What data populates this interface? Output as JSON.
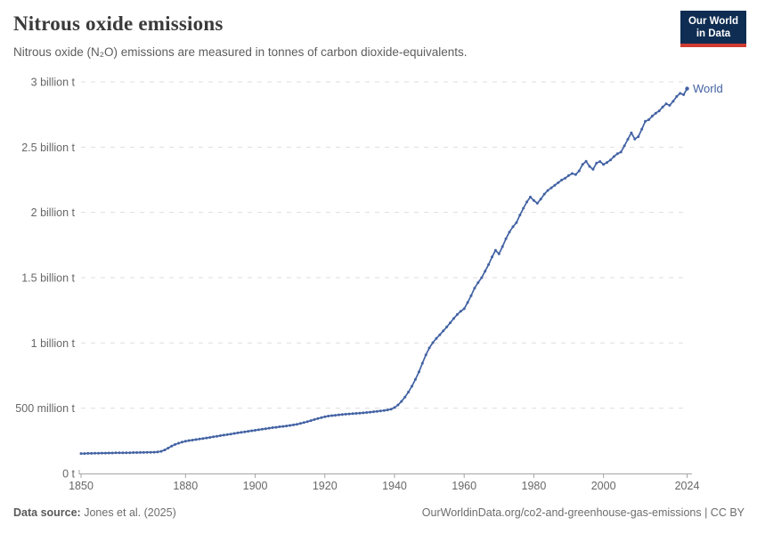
{
  "header": {
    "title": "Nitrous oxide emissions",
    "subtitle": "Nitrous oxide (N₂O) emissions are measured in tonnes of carbon dioxide-equivalents.",
    "logo": {
      "line1": "Our World",
      "line2": "in Data",
      "bg_color": "#0f2d52",
      "accent_color": "#cf3a31"
    }
  },
  "footer": {
    "source_label": "Data source:",
    "source_value": "Jones et al. (2025)",
    "right_text": "OurWorldinData.org/co2-and-greenhouse-gas-emissions | CC BY"
  },
  "chart_data": {
    "type": "line",
    "title": "Nitrous oxide emissions",
    "series_label": "World",
    "line_color": "#4262a3",
    "grid": "dashed-horizontal",
    "grid_color": "#dedede",
    "axis_color": "#a5a5a5",
    "unit": "tonnes of CO2-equivalents",
    "xlim": [
      1850,
      2024
    ],
    "ylim": [
      0,
      3
    ],
    "y_ticks": [
      {
        "value": 0,
        "label": "0 t"
      },
      {
        "value": 0.5,
        "label": "500 million t"
      },
      {
        "value": 1,
        "label": "1 billion t"
      },
      {
        "value": 1.5,
        "label": "1.5 billion t"
      },
      {
        "value": 2,
        "label": "2 billion t"
      },
      {
        "value": 2.5,
        "label": "2.5 billion t"
      },
      {
        "value": 3,
        "label": "3 billion t"
      }
    ],
    "x_ticks": [
      1850,
      1880,
      1900,
      1920,
      1940,
      1960,
      1980,
      2000,
      2024
    ],
    "x_start": 1850,
    "x_step": 1,
    "values_unit": "billion t",
    "values": [
      0.153,
      0.153,
      0.154,
      0.154,
      0.155,
      0.155,
      0.156,
      0.156,
      0.157,
      0.157,
      0.158,
      0.158,
      0.158,
      0.159,
      0.159,
      0.16,
      0.16,
      0.161,
      0.161,
      0.162,
      0.162,
      0.163,
      0.165,
      0.17,
      0.18,
      0.194,
      0.209,
      0.222,
      0.232,
      0.24,
      0.247,
      0.252,
      0.256,
      0.26,
      0.264,
      0.268,
      0.272,
      0.276,
      0.281,
      0.285,
      0.29,
      0.294,
      0.298,
      0.302,
      0.307,
      0.311,
      0.315,
      0.319,
      0.323,
      0.327,
      0.331,
      0.335,
      0.339,
      0.343,
      0.347,
      0.351,
      0.354,
      0.358,
      0.361,
      0.364,
      0.368,
      0.372,
      0.377,
      0.383,
      0.39,
      0.397,
      0.405,
      0.413,
      0.421,
      0.428,
      0.435,
      0.44,
      0.443,
      0.446,
      0.449,
      0.452,
      0.454,
      0.456,
      0.458,
      0.46,
      0.462,
      0.464,
      0.467,
      0.47,
      0.473,
      0.476,
      0.479,
      0.483,
      0.487,
      0.492,
      0.505,
      0.525,
      0.552,
      0.585,
      0.624,
      0.668,
      0.72,
      0.778,
      0.845,
      0.908,
      0.962,
      1.002,
      1.034,
      1.062,
      1.092,
      1.122,
      1.155,
      1.188,
      1.218,
      1.242,
      1.262,
      1.31,
      1.362,
      1.42,
      1.462,
      1.5,
      1.55,
      1.6,
      1.658,
      1.71,
      1.682,
      1.738,
      1.798,
      1.85,
      1.89,
      1.922,
      1.98,
      2.032,
      2.08,
      2.118,
      2.092,
      2.07,
      2.102,
      2.14,
      2.168,
      2.188,
      2.208,
      2.228,
      2.248,
      2.262,
      2.282,
      2.298,
      2.29,
      2.318,
      2.368,
      2.392,
      2.352,
      2.33,
      2.378,
      2.39,
      2.368,
      2.382,
      2.402,
      2.428,
      2.45,
      2.462,
      2.51,
      2.56,
      2.61,
      2.562,
      2.58,
      2.638,
      2.698,
      2.71,
      2.738,
      2.76,
      2.778,
      2.808,
      2.832,
      2.82,
      2.852,
      2.888,
      2.912,
      2.902,
      2.948
    ]
  }
}
